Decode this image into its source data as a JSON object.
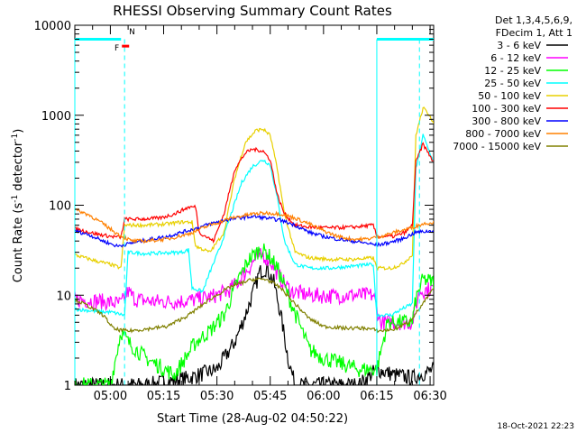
{
  "chart_data": {
    "type": "line",
    "title": "RHESSI Observing Summary Count Rates",
    "xlabel": "Start Time (28-Aug-02 04:50:22)",
    "ylabel": "Count Rate (s⁻¹ detector⁻¹)",
    "ylabel_main": "Count Rate (s",
    "ylabel_sup1": "-1",
    "ylabel_mid": " detector",
    "ylabel_sup2": "-1",
    "ylabel_end": ")",
    "yscale": "log",
    "xlim_minutes": [
      290,
      391
    ],
    "ylim": [
      1,
      10000
    ],
    "x_ticks": [
      {
        "label": "05:00",
        "value": 300
      },
      {
        "label": "05:15",
        "value": 315
      },
      {
        "label": "05:30",
        "value": 330
      },
      {
        "label": "05:45",
        "value": 345
      },
      {
        "label": "06:00",
        "value": 360
      },
      {
        "label": "06:15",
        "value": 375
      },
      {
        "label": "06:30",
        "value": 390
      }
    ],
    "y_ticks": [
      {
        "label": "1",
        "value": 1
      },
      {
        "label": "10",
        "value": 10
      },
      {
        "label": "100",
        "value": 100
      },
      {
        "label": "1000",
        "value": 1000
      },
      {
        "label": "10000",
        "value": 10000
      }
    ],
    "legend_header": [
      "Det 1,3,4,5,6,9,",
      "FDecim 1, Att 1"
    ],
    "legend_placement": "right",
    "series": [
      {
        "name": "3 - 6 keV",
        "color": "#000000",
        "points": [
          [
            290,
            1
          ],
          [
            310,
            1
          ],
          [
            322,
            1.2
          ],
          [
            330,
            1.5
          ],
          [
            335,
            3
          ],
          [
            338,
            6
          ],
          [
            340,
            10
          ],
          [
            342,
            18
          ],
          [
            344,
            20
          ],
          [
            346,
            14
          ],
          [
            348,
            6
          ],
          [
            350,
            2
          ],
          [
            352,
            1
          ],
          [
            370,
            1
          ],
          [
            375,
            1.5
          ],
          [
            380,
            1.3
          ],
          [
            385,
            1.2
          ],
          [
            391,
            1.5
          ]
        ]
      },
      {
        "name": "6 - 12 keV",
        "color": "#ff00ff",
        "points": [
          [
            290,
            9
          ],
          [
            298,
            8.5
          ],
          [
            303,
            8
          ],
          [
            305,
            11
          ],
          [
            307,
            9
          ],
          [
            312,
            8.5
          ],
          [
            318,
            8.5
          ],
          [
            323,
            8.8
          ],
          [
            328,
            9.5
          ],
          [
            333,
            11
          ],
          [
            336,
            14
          ],
          [
            339,
            20
          ],
          [
            341,
            26
          ],
          [
            343,
            28
          ],
          [
            345,
            24
          ],
          [
            348,
            15
          ],
          [
            351,
            11
          ],
          [
            356,
            10
          ],
          [
            362,
            9.8
          ],
          [
            368,
            10
          ],
          [
            374,
            10
          ],
          [
            376,
            5
          ],
          [
            385,
            5
          ],
          [
            387,
            11
          ],
          [
            391,
            12
          ]
        ]
      },
      {
        "name": "12 - 25 keV",
        "color": "#00ff00",
        "points": [
          [
            290,
            1
          ],
          [
            300,
            1
          ],
          [
            303,
            4
          ],
          [
            305,
            3
          ],
          [
            310,
            2
          ],
          [
            318,
            1.3
          ],
          [
            324,
            3
          ],
          [
            328,
            4
          ],
          [
            332,
            6
          ],
          [
            336,
            15
          ],
          [
            339,
            25
          ],
          [
            342,
            32
          ],
          [
            344,
            30
          ],
          [
            347,
            20
          ],
          [
            350,
            10
          ],
          [
            353,
            5
          ],
          [
            356,
            2.5
          ],
          [
            360,
            2
          ],
          [
            370,
            1.5
          ],
          [
            375,
            1.5
          ],
          [
            378,
            5
          ],
          [
            385,
            5
          ],
          [
            386,
            9
          ],
          [
            388,
            15
          ],
          [
            391,
            14
          ]
        ]
      },
      {
        "name": "25 - 50 keV",
        "color": "#00ffff",
        "points": [
          [
            290,
            7
          ],
          [
            298,
            6.5
          ],
          [
            300,
            6.5
          ],
          [
            304,
            6
          ],
          [
            305,
            30
          ],
          [
            310,
            29
          ],
          [
            320,
            30
          ],
          [
            322,
            32
          ],
          [
            323,
            12
          ],
          [
            326,
            11
          ],
          [
            328,
            18
          ],
          [
            331,
            35
          ],
          [
            334,
            80
          ],
          [
            337,
            180
          ],
          [
            340,
            270
          ],
          [
            343,
            320
          ],
          [
            345,
            280
          ],
          [
            347,
            120
          ],
          [
            349,
            40
          ],
          [
            352,
            22
          ],
          [
            356,
            20
          ],
          [
            362,
            20
          ],
          [
            368,
            21
          ],
          [
            374,
            22
          ],
          [
            375,
            6
          ],
          [
            379,
            6
          ],
          [
            382,
            7
          ],
          [
            385,
            8
          ],
          [
            386,
            250
          ],
          [
            388,
            600
          ],
          [
            391,
            300
          ]
        ]
      },
      {
        "name": "50 - 100 keV",
        "color": "#e8d000",
        "points": [
          [
            290,
            28
          ],
          [
            296,
            24
          ],
          [
            300,
            22
          ],
          [
            303,
            20
          ],
          [
            304,
            60
          ],
          [
            310,
            60
          ],
          [
            316,
            62
          ],
          [
            320,
            65
          ],
          [
            323,
            65
          ],
          [
            324,
            35
          ],
          [
            328,
            30
          ],
          [
            332,
            50
          ],
          [
            335,
            200
          ],
          [
            338,
            500
          ],
          [
            341,
            680
          ],
          [
            343,
            700
          ],
          [
            345,
            600
          ],
          [
            347,
            250
          ],
          [
            349,
            80
          ],
          [
            352,
            30
          ],
          [
            356,
            26
          ],
          [
            362,
            25
          ],
          [
            368,
            25
          ],
          [
            374,
            26
          ],
          [
            375,
            20
          ],
          [
            379,
            20
          ],
          [
            382,
            22
          ],
          [
            385,
            28
          ],
          [
            386,
            600
          ],
          [
            388,
            1200
          ],
          [
            390,
            1000
          ],
          [
            391,
            800
          ]
        ]
      },
      {
        "name": "100 - 300 keV",
        "color": "#ff0000",
        "points": [
          [
            290,
            55
          ],
          [
            296,
            48
          ],
          [
            300,
            45
          ],
          [
            303,
            44
          ],
          [
            304,
            70
          ],
          [
            308,
            70
          ],
          [
            314,
            72
          ],
          [
            318,
            80
          ],
          [
            322,
            95
          ],
          [
            324,
            96
          ],
          [
            325,
            50
          ],
          [
            329,
            40
          ],
          [
            332,
            80
          ],
          [
            335,
            250
          ],
          [
            338,
            380
          ],
          [
            340,
            420
          ],
          [
            343,
            400
          ],
          [
            345,
            320
          ],
          [
            347,
            130
          ],
          [
            349,
            80
          ],
          [
            352,
            60
          ],
          [
            356,
            57
          ],
          [
            362,
            56
          ],
          [
            368,
            57
          ],
          [
            374,
            60
          ],
          [
            375,
            45
          ],
          [
            380,
            45
          ],
          [
            383,
            50
          ],
          [
            385,
            60
          ],
          [
            386,
            300
          ],
          [
            388,
            480
          ],
          [
            391,
            300
          ]
        ]
      },
      {
        "name": "300 - 800 keV",
        "color": "#0000ff",
        "points": [
          [
            290,
            52
          ],
          [
            294,
            47
          ],
          [
            298,
            40
          ],
          [
            302,
            35
          ],
          [
            306,
            38
          ],
          [
            310,
            41
          ],
          [
            316,
            45
          ],
          [
            320,
            50
          ],
          [
            324,
            55
          ],
          [
            328,
            62
          ],
          [
            332,
            68
          ],
          [
            336,
            72
          ],
          [
            340,
            75
          ],
          [
            344,
            72
          ],
          [
            348,
            68
          ],
          [
            352,
            60
          ],
          [
            356,
            50
          ],
          [
            360,
            45
          ],
          [
            364,
            42
          ],
          [
            368,
            40
          ],
          [
            372,
            38
          ],
          [
            375,
            36
          ],
          [
            378,
            38
          ],
          [
            382,
            42
          ],
          [
            386,
            50
          ],
          [
            391,
            52
          ]
        ]
      },
      {
        "name": "800 - 7000 keV",
        "color": "#ff8000",
        "points": [
          [
            290,
            90
          ],
          [
            294,
            78
          ],
          [
            298,
            62
          ],
          [
            302,
            48
          ],
          [
            306,
            40
          ],
          [
            310,
            40
          ],
          [
            316,
            42
          ],
          [
            322,
            48
          ],
          [
            328,
            60
          ],
          [
            334,
            72
          ],
          [
            340,
            80
          ],
          [
            344,
            82
          ],
          [
            348,
            80
          ],
          [
            352,
            72
          ],
          [
            356,
            62
          ],
          [
            360,
            52
          ],
          [
            364,
            45
          ],
          [
            368,
            42
          ],
          [
            372,
            42
          ],
          [
            376,
            45
          ],
          [
            380,
            50
          ],
          [
            384,
            55
          ],
          [
            388,
            62
          ],
          [
            391,
            65
          ]
        ]
      },
      {
        "name": "7000 - 15000 keV",
        "color": "#808000",
        "points": [
          [
            290,
            9
          ],
          [
            294,
            7.5
          ],
          [
            298,
            6
          ],
          [
            301,
            4.2
          ],
          [
            305,
            4
          ],
          [
            310,
            4.2
          ],
          [
            316,
            4.5
          ],
          [
            322,
            6
          ],
          [
            328,
            9
          ],
          [
            334,
            12.5
          ],
          [
            340,
            15
          ],
          [
            344,
            15
          ],
          [
            348,
            12
          ],
          [
            352,
            8
          ],
          [
            356,
            5.5
          ],
          [
            360,
            4.5
          ],
          [
            366,
            4.3
          ],
          [
            372,
            4.3
          ],
          [
            376,
            4
          ],
          [
            380,
            4.2
          ],
          [
            384,
            5
          ],
          [
            388,
            8
          ],
          [
            391,
            12
          ]
        ]
      }
    ],
    "attenuator_lines": [
      {
        "name": "cyan-solid",
        "color": "#00ffff",
        "style": "solid",
        "segments": [
          [
            290,
            7000,
            303,
            7000
          ],
          [
            375,
            7000,
            391,
            7000
          ]
        ]
      },
      {
        "name": "att-vertical",
        "color": "#00ffff",
        "style": "solid",
        "x": [
          290,
          375
        ]
      },
      {
        "name": "att-vertical-dashed",
        "color": "#00ffff",
        "style": "dashed",
        "x": [
          304,
          387
        ]
      }
    ],
    "flags": [
      {
        "label": "F",
        "color": "#ff0000",
        "x": 303
      },
      {
        "label": "N",
        "color": "#00ffff",
        "x": 305
      }
    ],
    "footer_date": "18-Oct-2021 22:23"
  }
}
